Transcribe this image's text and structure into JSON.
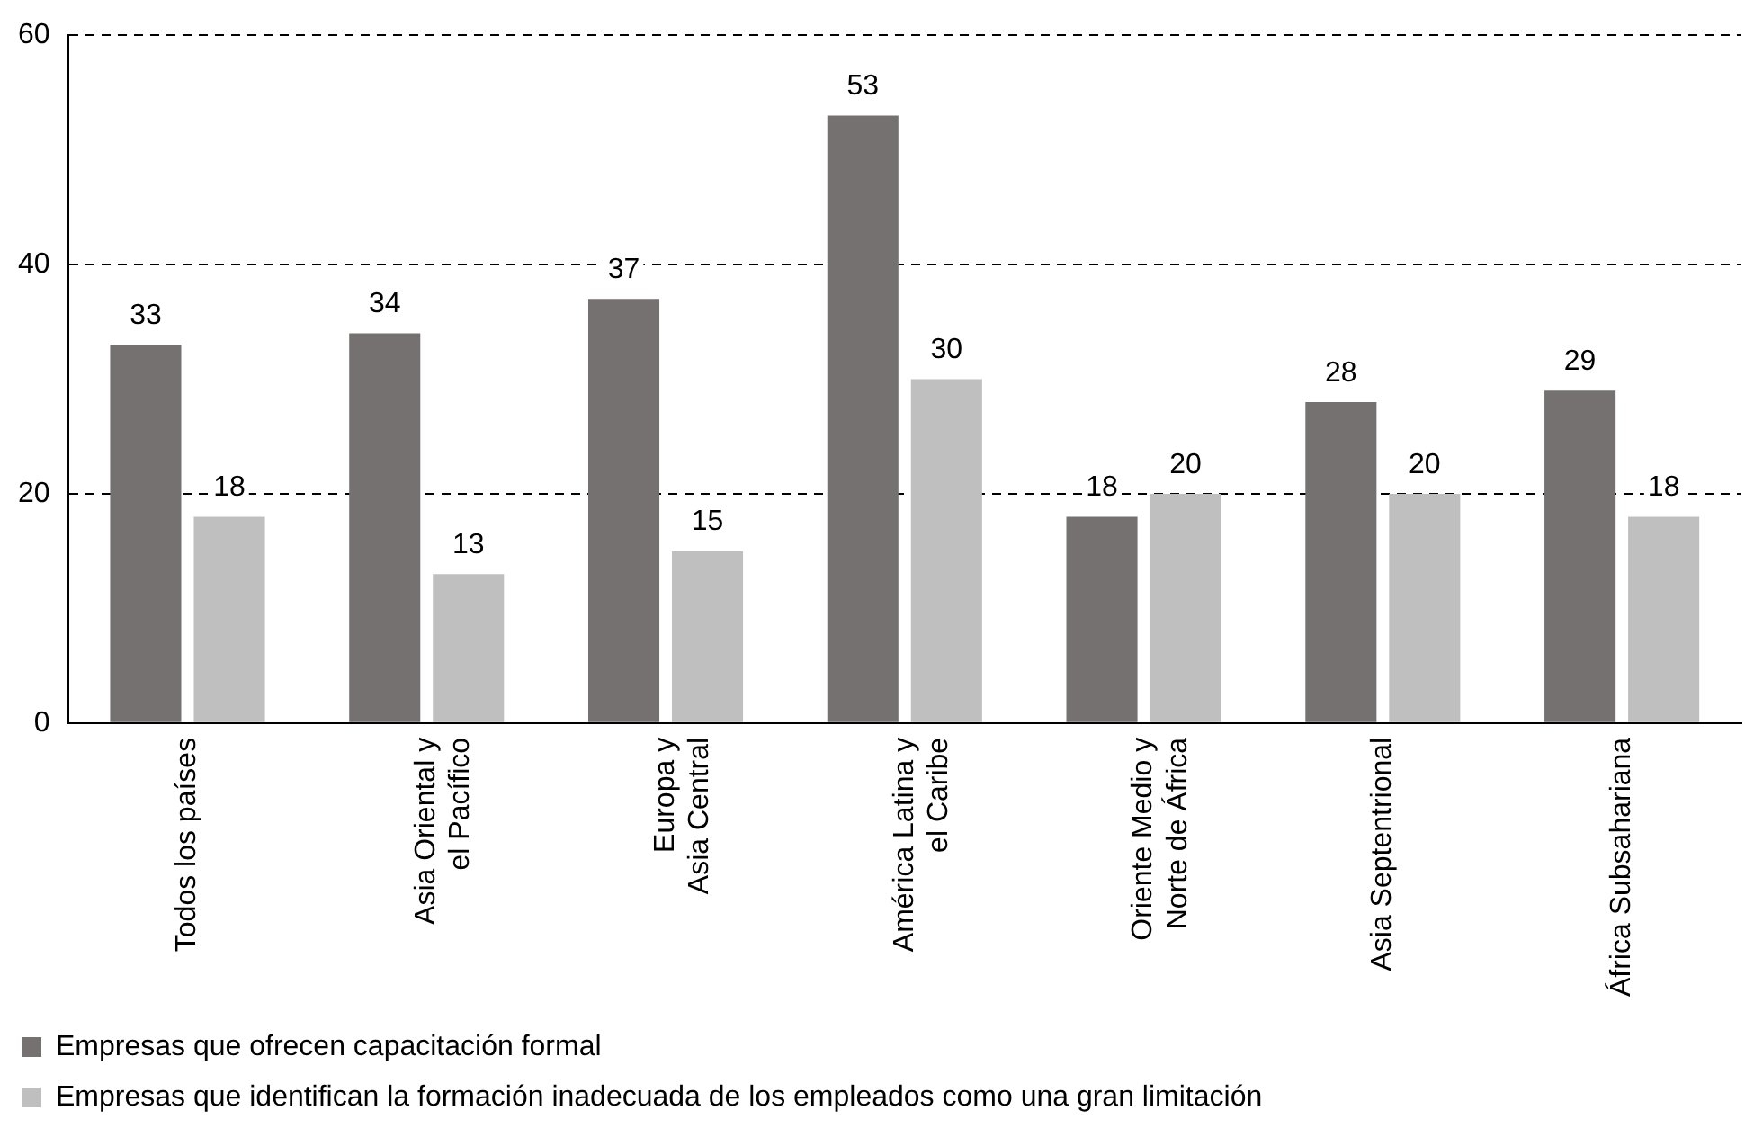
{
  "chart_data": {
    "type": "bar",
    "categories": [
      "Todos los países",
      "Asia Oriental y\nel Pacífico",
      "Europa y\nAsia Central",
      "América Latina y\nel Caribe",
      "Oriente Medio y\nNorte de África",
      "Asia Septentrional",
      "África Subsahariana"
    ],
    "series": [
      {
        "name": "Empresas que ofrecen capacitación formal",
        "color": "#767171",
        "values": [
          33,
          34,
          37,
          53,
          18,
          28,
          29
        ]
      },
      {
        "name": "Empresas que identifican la formación inadecuada de los empleados como una gran limitación",
        "color": "#bfbfbf",
        "values": [
          18,
          13,
          15,
          30,
          20,
          20,
          18
        ]
      }
    ],
    "ylim": [
      0,
      60
    ],
    "yticks": [
      0,
      20,
      40,
      60
    ],
    "grid": "y",
    "line_style": "dashed",
    "legend": "bottom",
    "data_labels": true
  }
}
